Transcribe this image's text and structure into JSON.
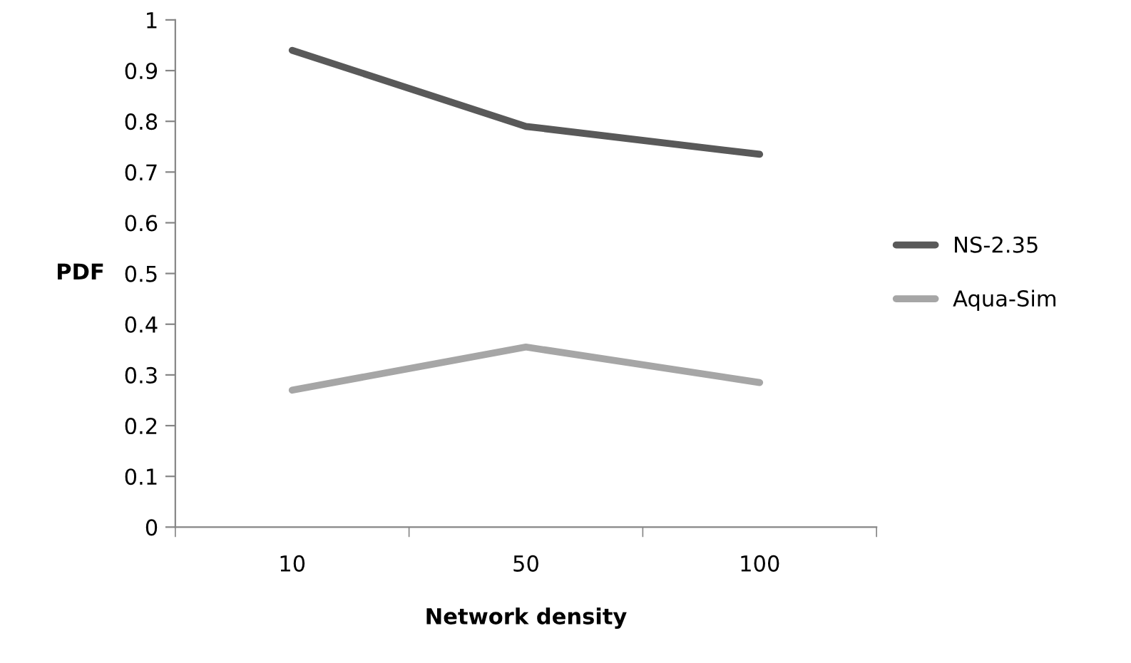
{
  "chart_data": {
    "type": "line",
    "xlabel": "Network density",
    "ylabel": "PDF",
    "categories": [
      "10",
      "50",
      "100"
    ],
    "series": [
      {
        "name": "NS-2.35",
        "color": "#595959",
        "values": [
          0.94,
          0.79,
          0.735
        ]
      },
      {
        "name": "Aqua-Sim",
        "color": "#a6a6a6",
        "values": [
          0.27,
          0.355,
          0.285
        ]
      }
    ],
    "ylim": [
      0,
      1
    ],
    "yticks": [
      0,
      {
        "value": 0.1,
        "label": "0.1"
      },
      {
        "value": 0.2,
        "label": "0.2"
      },
      {
        "value": 0.3,
        "label": "0.3"
      },
      {
        "value": 0.4,
        "label": "0.4"
      },
      {
        "value": 0.5,
        "label": "0.5"
      },
      {
        "value": 0.6,
        "label": "0.6"
      },
      {
        "value": 0.7,
        "label": "0.7"
      },
      {
        "value": 0.8,
        "label": "0.8"
      },
      {
        "value": 0.9,
        "label": "0.9"
      },
      1
    ],
    "grid": false,
    "legend": "right",
    "marker": "none",
    "line_style": "solid"
  }
}
